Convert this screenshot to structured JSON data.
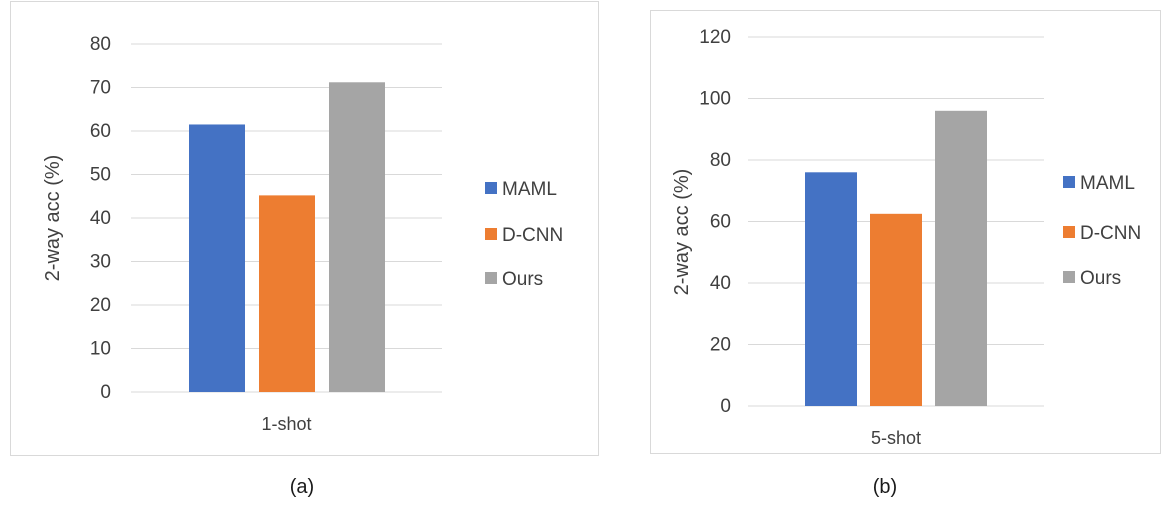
{
  "colors": {
    "MAML": "#4472c4",
    "D-CNN": "#ed7d31",
    "Ours": "#a5a5a5",
    "grid": "#d9d9d9",
    "text": "#595959"
  },
  "panels": [
    {
      "caption": "(a)"
    },
    {
      "caption": "(b)"
    }
  ],
  "chart_data": [
    {
      "type": "bar",
      "categories": [
        "1-shot"
      ],
      "series": [
        {
          "name": "MAML",
          "values": [
            61.5
          ]
        },
        {
          "name": "D-CNN",
          "values": [
            45.2
          ]
        },
        {
          "name": "Ours",
          "values": [
            71.2
          ]
        }
      ],
      "ylabel": "2-way acc (%)",
      "ylim": [
        0,
        80
      ],
      "yticks": [
        0,
        10,
        20,
        30,
        40,
        50,
        60,
        70,
        80
      ],
      "grid": true,
      "legend": "right"
    },
    {
      "type": "bar",
      "categories": [
        "5-shot"
      ],
      "series": [
        {
          "name": "MAML",
          "values": [
            76
          ]
        },
        {
          "name": "D-CNN",
          "values": [
            62.5
          ]
        },
        {
          "name": "Ours",
          "values": [
            96
          ]
        }
      ],
      "ylabel": "2-way acc (%)",
      "ylim": [
        0,
        120
      ],
      "yticks": [
        0,
        20,
        40,
        60,
        80,
        100,
        120
      ],
      "grid": true,
      "legend": "right"
    }
  ]
}
